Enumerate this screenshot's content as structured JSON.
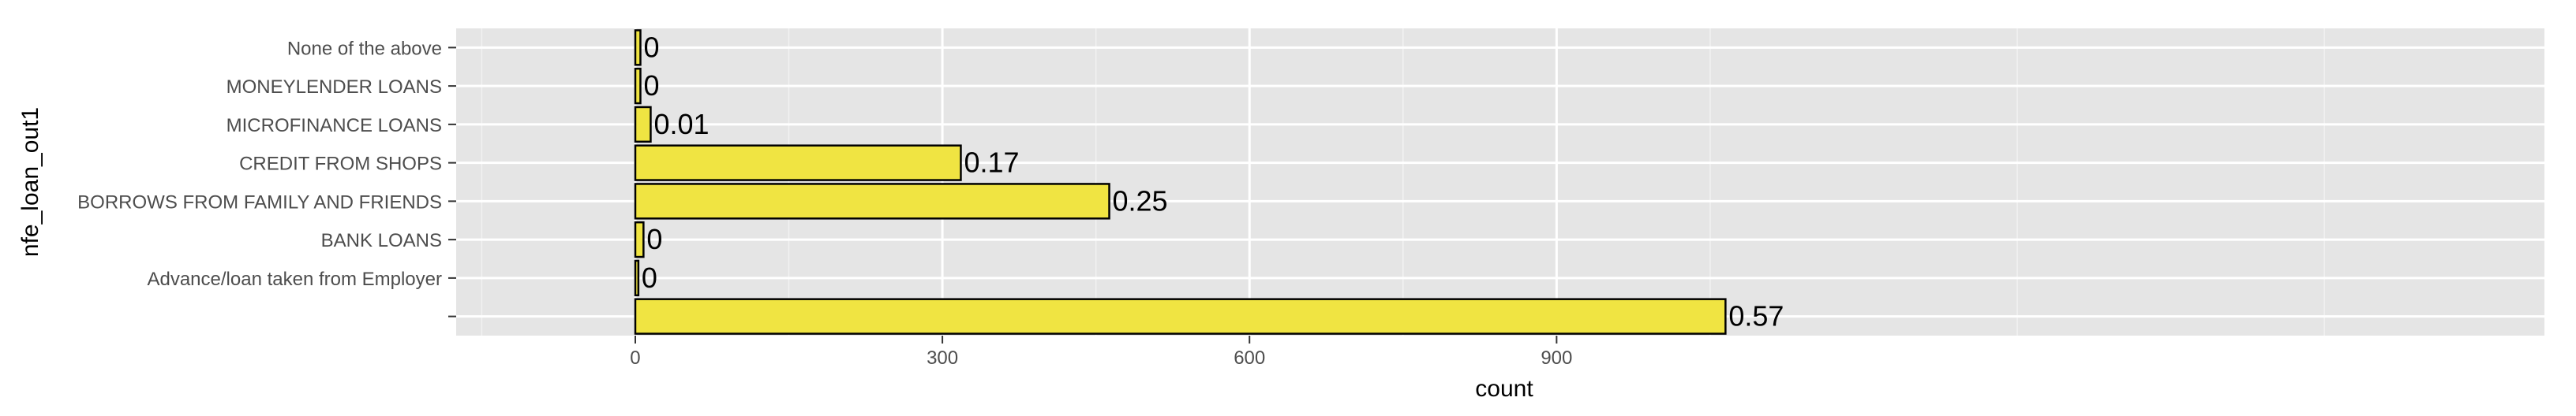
{
  "chart_data": {
    "type": "bar",
    "orientation": "horizontal",
    "xlabel": "count",
    "ylabel": "nfe_loan_out1",
    "xlim": [
      -175,
      1865
    ],
    "x_ticks": [
      0,
      300,
      600,
      900
    ],
    "x_tick_labels": [
      "0",
      "300",
      "600",
      "900"
    ],
    "grid": true,
    "legend": "none",
    "bar_fill": "#f0e442",
    "bar_stroke": "#000000",
    "panel_background": "#e5e5e5",
    "grid_color": "#ffffff",
    "categories": [
      "None of the above",
      "MONEYLENDER LOANS",
      "MICROFINANCE LOANS",
      "CREDIT FROM SHOPS",
      "BORROWS FROM FAMILY AND FRIENDS",
      "BANK LOANS",
      "Advance/loan taken from Employer",
      ""
    ],
    "values": [
      5,
      5,
      15,
      318,
      463,
      8,
      3,
      1065
    ],
    "data_labels": [
      "0",
      "0",
      "0.01",
      "0.17",
      "0.25",
      "0",
      "0",
      "0.57"
    ]
  }
}
